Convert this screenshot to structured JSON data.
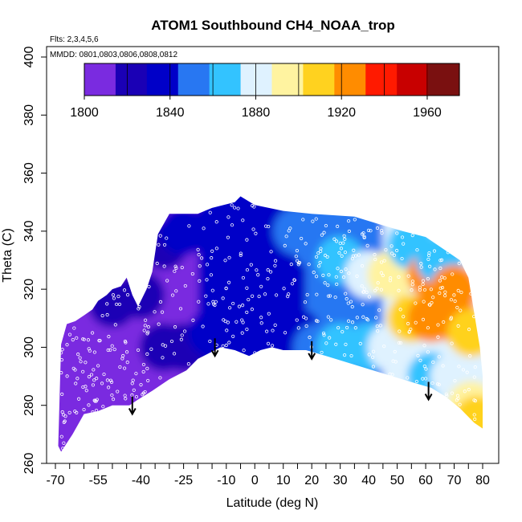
{
  "chart_data": {
    "type": "heatmap",
    "title": "ATOM1 Southbound CH4_NOAA_trop",
    "subtitle_flights": "Flts: 2,3,4,5,6",
    "subtitle_dates": "MMDD: 0801,0803,0806,0808,0812",
    "xlabel": "Latitude (deg N)",
    "ylabel": "Theta (C)",
    "xlim": [
      -72,
      85
    ],
    "ylim": [
      260,
      402
    ],
    "x_ticks": [
      "-70",
      "-55",
      "-40",
      "-25",
      "-10",
      "0",
      "10",
      "20",
      "30",
      "40",
      "50",
      "60",
      "70",
      "80"
    ],
    "x_tick_values": [
      -70,
      -55,
      -40,
      -25,
      -10,
      0,
      10,
      20,
      30,
      40,
      50,
      60,
      70,
      80
    ],
    "y_ticks": [
      "260",
      "280",
      "300",
      "320",
      "340",
      "360",
      "380",
      "400"
    ],
    "y_tick_values": [
      260,
      280,
      300,
      320,
      340,
      360,
      380,
      400
    ],
    "colorbar": {
      "min": 1800,
      "max": 1975,
      "tick_labels": [
        "1800",
        "1840",
        "1880",
        "1920",
        "1960"
      ],
      "tick_values": [
        1800,
        1840,
        1880,
        1920,
        1960
      ],
      "divisions": [
        1820,
        1840,
        1860,
        1880,
        1900,
        1920,
        1940,
        1960
      ],
      "colors": [
        "#7a2be0",
        "#1a00b5",
        "#0000c8",
        "#2877f2",
        "#33c3ff",
        "#dff2ff",
        "#fff3a0",
        "#ffd21f",
        "#ff8c00",
        "#ff1a00",
        "#c80000",
        "#7a1010"
      ]
    },
    "upper_boundary": [
      {
        "lat": -68,
        "theta": 301
      },
      {
        "lat": -66,
        "theta": 308
      },
      {
        "lat": -63,
        "theta": 309
      },
      {
        "lat": -60,
        "theta": 311
      },
      {
        "lat": -57,
        "theta": 313
      },
      {
        "lat": -55,
        "theta": 316
      },
      {
        "lat": -52,
        "theta": 318
      },
      {
        "lat": -50,
        "theta": 320
      },
      {
        "lat": -47,
        "theta": 321
      },
      {
        "lat": -45,
        "theta": 324
      },
      {
        "lat": -43,
        "theta": 318
      },
      {
        "lat": -41,
        "theta": 314
      },
      {
        "lat": -38,
        "theta": 320
      },
      {
        "lat": -36,
        "theta": 326
      },
      {
        "lat": -34,
        "theta": 339
      },
      {
        "lat": -30,
        "theta": 346
      },
      {
        "lat": -20,
        "theta": 346
      },
      {
        "lat": -15,
        "theta": 348
      },
      {
        "lat": -7,
        "theta": 350
      },
      {
        "lat": -5,
        "theta": 352
      },
      {
        "lat": 0,
        "theta": 349
      },
      {
        "lat": 10,
        "theta": 347
      },
      {
        "lat": 20,
        "theta": 346
      },
      {
        "lat": 35,
        "theta": 345
      },
      {
        "lat": 45,
        "theta": 342
      },
      {
        "lat": 52,
        "theta": 340
      },
      {
        "lat": 60,
        "theta": 338
      },
      {
        "lat": 66,
        "theta": 334
      },
      {
        "lat": 72,
        "theta": 330
      },
      {
        "lat": 75,
        "theta": 324
      },
      {
        "lat": 77,
        "theta": 312
      },
      {
        "lat": 79,
        "theta": 300
      },
      {
        "lat": 80,
        "theta": 290
      },
      {
        "lat": 80,
        "theta": 272
      }
    ],
    "lower_boundary": [
      {
        "lat": 80,
        "theta": 272
      },
      {
        "lat": 77,
        "theta": 274
      },
      {
        "lat": 72,
        "theta": 279
      },
      {
        "lat": 67,
        "theta": 283
      },
      {
        "lat": 62,
        "theta": 286
      },
      {
        "lat": 55,
        "theta": 288
      },
      {
        "lat": 45,
        "theta": 291
      },
      {
        "lat": 35,
        "theta": 294
      },
      {
        "lat": 25,
        "theta": 297
      },
      {
        "lat": 18,
        "theta": 299
      },
      {
        "lat": 10,
        "theta": 299
      },
      {
        "lat": 6,
        "theta": 300
      },
      {
        "lat": 2,
        "theta": 299
      },
      {
        "lat": -2,
        "theta": 297
      },
      {
        "lat": -7,
        "theta": 299
      },
      {
        "lat": -12,
        "theta": 300
      },
      {
        "lat": -20,
        "theta": 296
      },
      {
        "lat": -24,
        "theta": 292
      },
      {
        "lat": -30,
        "theta": 289
      },
      {
        "lat": -36,
        "theta": 285
      },
      {
        "lat": -41,
        "theta": 282
      },
      {
        "lat": -44,
        "theta": 280
      },
      {
        "lat": -50,
        "theta": 280
      },
      {
        "lat": -55,
        "theta": 278
      },
      {
        "lat": -60,
        "theta": 277
      },
      {
        "lat": -64,
        "theta": 270
      },
      {
        "lat": -68,
        "theta": 264
      },
      {
        "lat": -69,
        "theta": 266
      }
    ],
    "ch4_field": [
      {
        "lat": -69,
        "theta": 270,
        "ch4": 1808
      },
      {
        "lat": -69,
        "theta": 300,
        "ch4": 1810
      },
      {
        "lat": -60,
        "theta": 285,
        "ch4": 1808
      },
      {
        "lat": -60,
        "theta": 305,
        "ch4": 1812
      },
      {
        "lat": -50,
        "theta": 285,
        "ch4": 1810
      },
      {
        "lat": -50,
        "theta": 315,
        "ch4": 1815
      },
      {
        "lat": -40,
        "theta": 290,
        "ch4": 1812
      },
      {
        "lat": -40,
        "theta": 318,
        "ch4": 1818
      },
      {
        "lat": -32,
        "theta": 300,
        "ch4": 1822
      },
      {
        "lat": -32,
        "theta": 335,
        "ch4": 1826
      },
      {
        "lat": -25,
        "theta": 300,
        "ch4": 1828
      },
      {
        "lat": -25,
        "theta": 340,
        "ch4": 1830
      },
      {
        "lat": -15,
        "theta": 305,
        "ch4": 1830
      },
      {
        "lat": -15,
        "theta": 340,
        "ch4": 1832
      },
      {
        "lat": -5,
        "theta": 305,
        "ch4": 1833
      },
      {
        "lat": -5,
        "theta": 340,
        "ch4": 1833
      },
      {
        "lat": 5,
        "theta": 305,
        "ch4": 1834
      },
      {
        "lat": 5,
        "theta": 340,
        "ch4": 1836
      },
      {
        "lat": 15,
        "theta": 305,
        "ch4": 1840
      },
      {
        "lat": 15,
        "theta": 340,
        "ch4": 1845
      },
      {
        "lat": 22,
        "theta": 300,
        "ch4": 1850
      },
      {
        "lat": 22,
        "theta": 335,
        "ch4": 1856
      },
      {
        "lat": 30,
        "theta": 300,
        "ch4": 1860
      },
      {
        "lat": 30,
        "theta": 330,
        "ch4": 1866
      },
      {
        "lat": 40,
        "theta": 300,
        "ch4": 1866
      },
      {
        "lat": 40,
        "theta": 325,
        "ch4": 1876
      },
      {
        "lat": 48,
        "theta": 300,
        "ch4": 1880
      },
      {
        "lat": 48,
        "theta": 325,
        "ch4": 1902
      },
      {
        "lat": 55,
        "theta": 295,
        "ch4": 1875
      },
      {
        "lat": 55,
        "theta": 310,
        "ch4": 1912
      },
      {
        "lat": 55,
        "theta": 335,
        "ch4": 1860
      },
      {
        "lat": 62,
        "theta": 290,
        "ch4": 1872
      },
      {
        "lat": 62,
        "theta": 310,
        "ch4": 1918
      },
      {
        "lat": 62,
        "theta": 325,
        "ch4": 1922
      },
      {
        "lat": 65,
        "theta": 330,
        "ch4": 1860
      },
      {
        "lat": 70,
        "theta": 290,
        "ch4": 1885
      },
      {
        "lat": 70,
        "theta": 310,
        "ch4": 1920
      },
      {
        "lat": 70,
        "theta": 320,
        "ch4": 1926
      },
      {
        "lat": 76,
        "theta": 280,
        "ch4": 1902
      },
      {
        "lat": 76,
        "theta": 305,
        "ch4": 1915
      },
      {
        "lat": 78,
        "theta": 275,
        "ch4": 1910
      }
    ],
    "arrows": [
      {
        "lat": -43,
        "theta": 277
      },
      {
        "lat": -14,
        "theta": 297
      },
      {
        "lat": 20,
        "theta": 296
      },
      {
        "lat": 61,
        "theta": 282
      }
    ]
  }
}
